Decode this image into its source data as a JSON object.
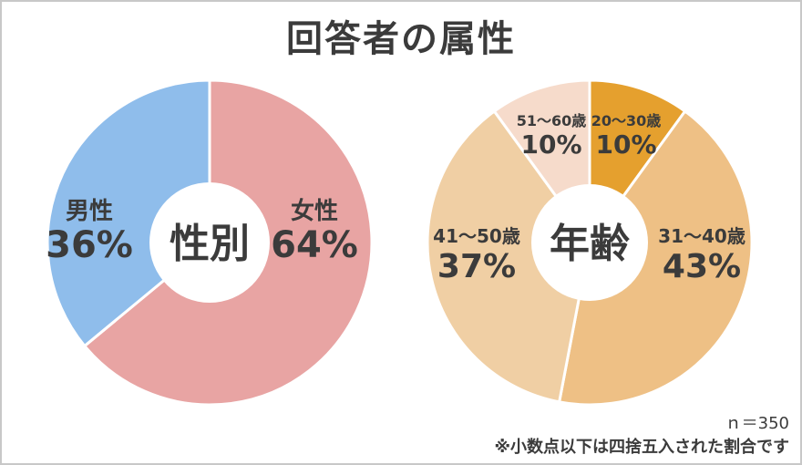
{
  "title": "回答者の属性",
  "chart_data": [
    {
      "type": "pie",
      "center_label": "性別",
      "categories": [
        "女性",
        "男性"
      ],
      "values": [
        64,
        36
      ],
      "value_labels": [
        "64%",
        "36%"
      ],
      "colors": [
        "#e8a4a3",
        "#8fbdeb"
      ]
    },
    {
      "type": "pie",
      "center_label": "年齢",
      "categories": [
        "20～30歳",
        "31～40歳",
        "41～50歳",
        "51～60歳"
      ],
      "values": [
        10,
        43,
        37,
        10
      ],
      "value_labels": [
        "10%",
        "43%",
        "37%",
        "10%"
      ],
      "colors": [
        "#e5a02e",
        "#eec085",
        "#f0cfa4",
        "#f6dbcb"
      ]
    }
  ],
  "sample_size": "ｎ＝350",
  "footnote": "※小数点以下は四捨五入された割合です"
}
